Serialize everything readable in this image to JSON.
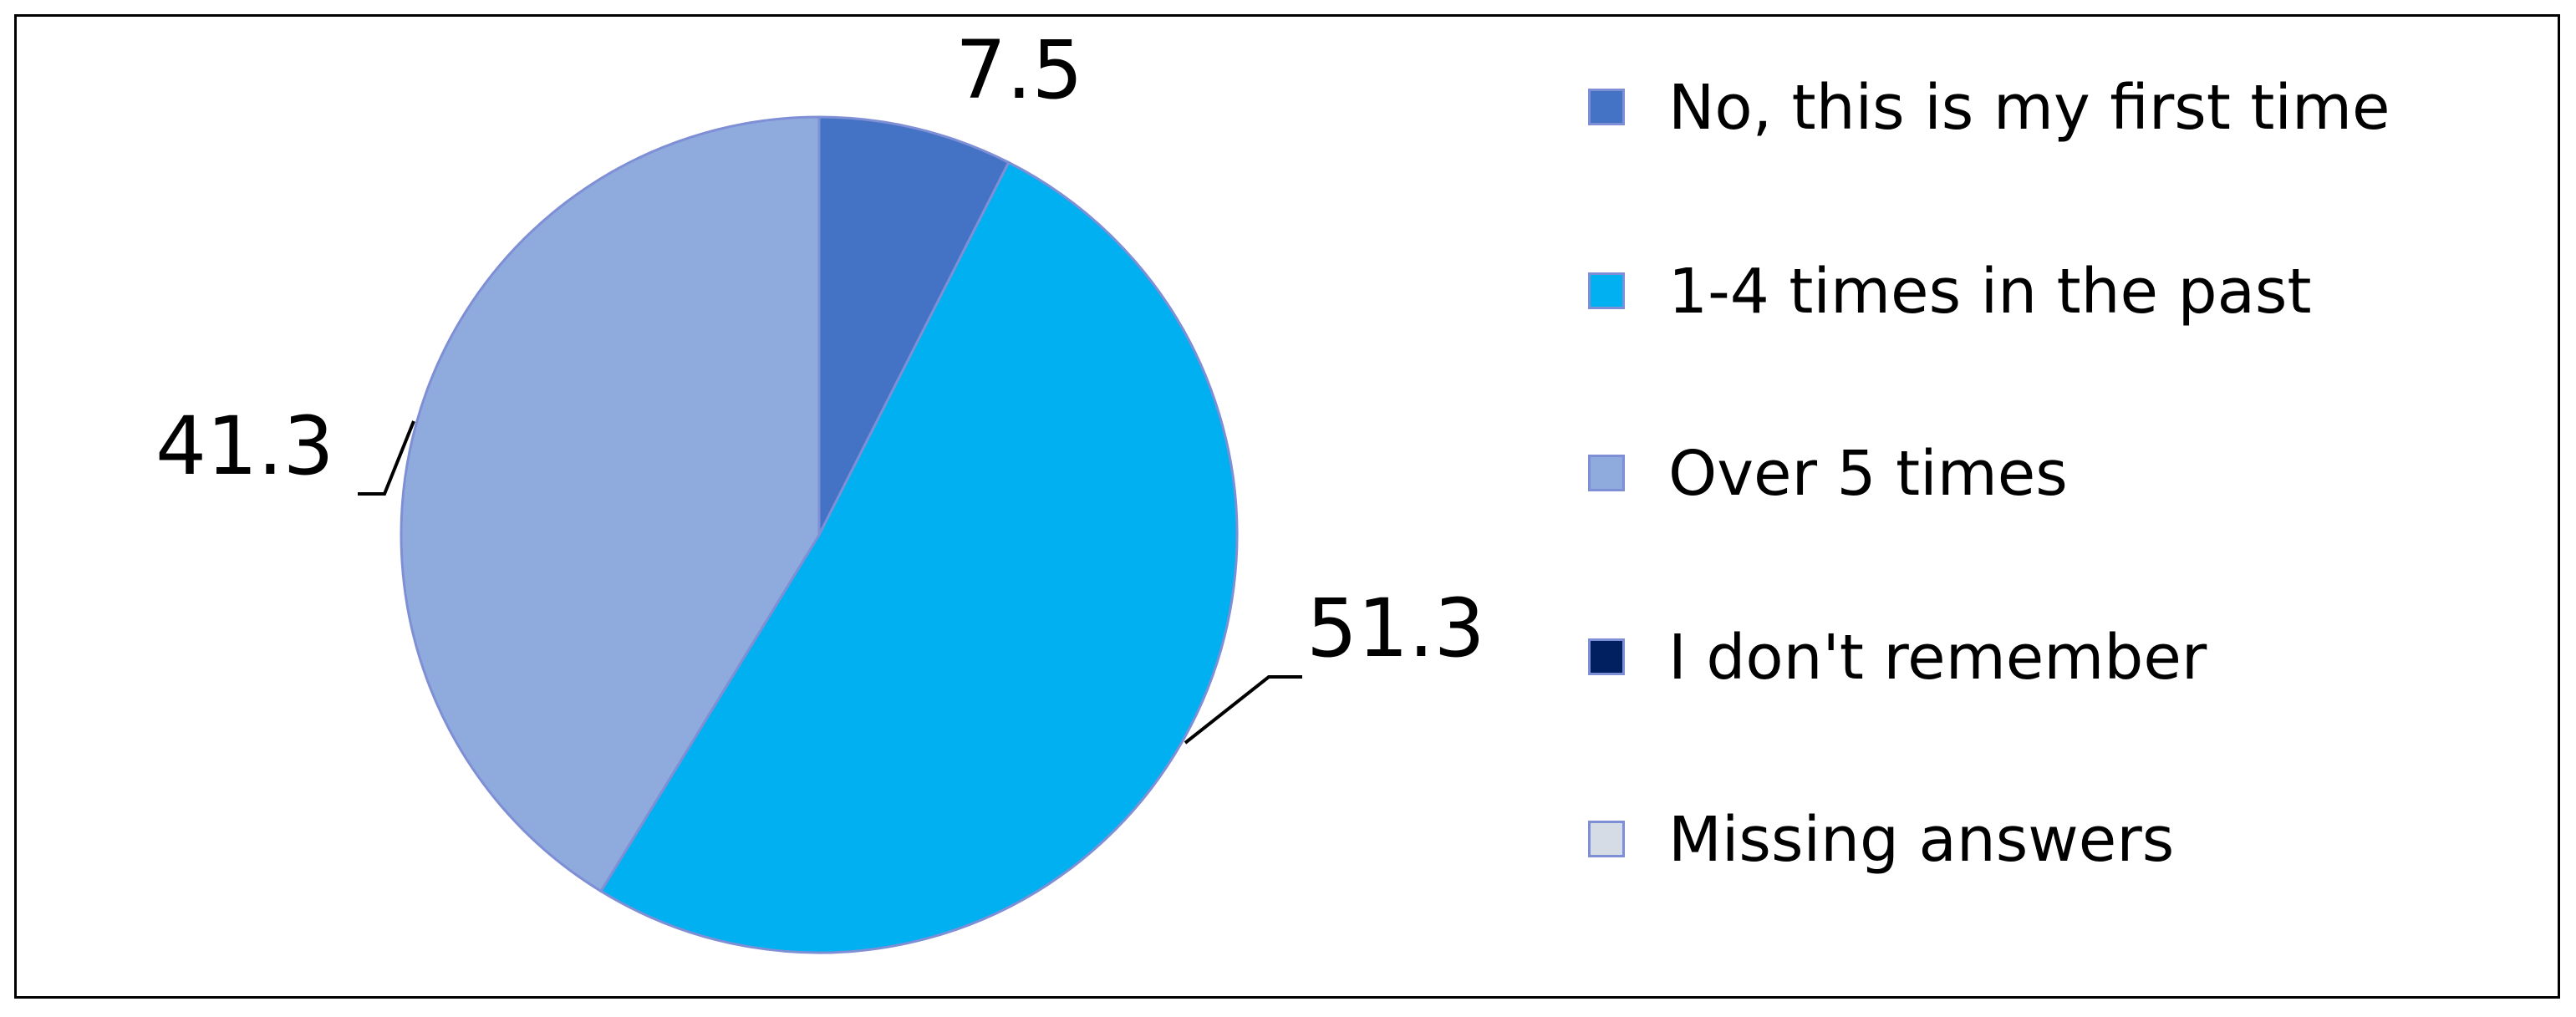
{
  "chart_data": {
    "type": "pie",
    "slices": [
      {
        "label": "No, this is my first time",
        "value": 7.5,
        "value_label": "7.5",
        "color": "#4472c4"
      },
      {
        "label": "1-4 times in the past",
        "value": 51.3,
        "value_label": "51.3",
        "color": "#00b0f0"
      },
      {
        "label": "Over 5 times",
        "value": 41.3,
        "value_label": "41.3",
        "color": "#8faadc"
      },
      {
        "label": "I don't remember",
        "value": 0,
        "value_label": "",
        "color": "#002060"
      },
      {
        "label": "Missing answers",
        "value": 0,
        "value_label": "",
        "color": "#d6dce5"
      }
    ],
    "legend_position": "right",
    "slice_border_color": "#7f8fd6"
  }
}
